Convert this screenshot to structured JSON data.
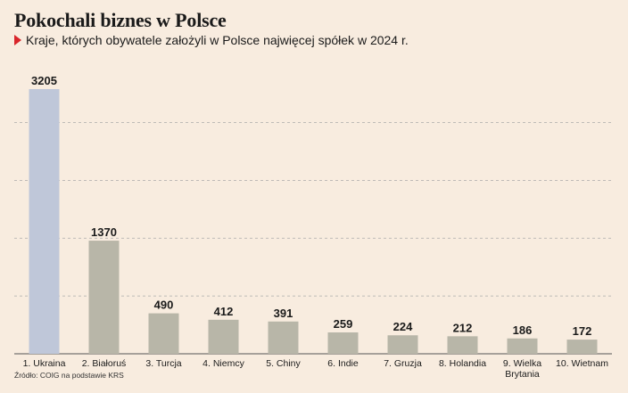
{
  "title": "Pokochali biznes w Polsce",
  "subtitle": "Kraje, których obywatele założyli w Polsce najwięcej spółek w 2024 r.",
  "source": "Źródło: COIG  na podstawie KRS",
  "colors": {
    "background": "#f8ecdf",
    "highlight_bar": "#bfc7d9",
    "bar": "#b8b6a8",
    "grid": "#aaaaaa",
    "accent": "#d9262b"
  },
  "chart_data": {
    "type": "bar",
    "categories": [
      "1. Ukraina",
      "2. Białoruś",
      "3. Turcja",
      "4. Niemcy",
      "5. Chiny",
      "6. Indie",
      "7. Gruzja",
      "8. Holandia",
      "9. Wielka Brytania",
      "10. Wietnam"
    ],
    "values": [
      3205,
      1370,
      490,
      412,
      391,
      259,
      224,
      212,
      186,
      172
    ],
    "data_labels": [
      "3205",
      "1370",
      "490",
      "412",
      "391",
      "259",
      "224",
      "212",
      "186",
      "172"
    ],
    "ylim": [
      0,
      3500
    ],
    "grid": true,
    "highlighted_index": 0
  }
}
